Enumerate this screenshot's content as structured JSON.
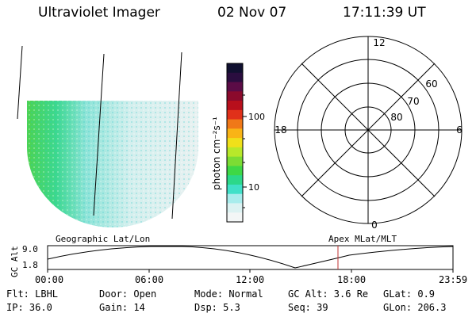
{
  "header": {
    "instrument": "Ultraviolet Imager",
    "date": "02 Nov 07",
    "time": "17:11:39 UT"
  },
  "colorbar": {
    "label": "photon cm⁻²s⁻¹",
    "ticks": [
      "100",
      "10"
    ],
    "colors": [
      "#101030",
      "#2a0d3f",
      "#5b0c46",
      "#8b0a2c",
      "#b80f1c",
      "#e0301a",
      "#f07818",
      "#f9b416",
      "#f0e01a",
      "#b8e82a",
      "#7cdc34",
      "#3ed846",
      "#2cd88a",
      "#40e0c8",
      "#a8ecec",
      "#dcf2f2",
      "#f3f6f6"
    ]
  },
  "polar": {
    "mlt_labels": {
      "top": "12",
      "left": "18",
      "right": "6",
      "bottom": "0"
    },
    "lat_labels": [
      "60",
      "70",
      "80"
    ]
  },
  "timeline": {
    "ylabel": "GC Alt",
    "yticks": [
      "9.0",
      "1.8"
    ],
    "left_caption": "Geographic Lat/Lon",
    "right_caption": "Apex MLat/MLT",
    "xticks": [
      "00:00",
      "06:00",
      "12:00",
      "18:00",
      "23:59"
    ],
    "marker_color": "#c03030"
  },
  "footer": {
    "row1": [
      "Flt: LBHL",
      "Door: Open",
      "Mode: Normal",
      "GC Alt: 3.6 Re",
      "GLat:   0.9"
    ],
    "row2": [
      "IP: 36.0",
      "Gain: 14",
      "Dsp:    5.3",
      "Seq: 39",
      "GLon: 206.3"
    ]
  }
}
